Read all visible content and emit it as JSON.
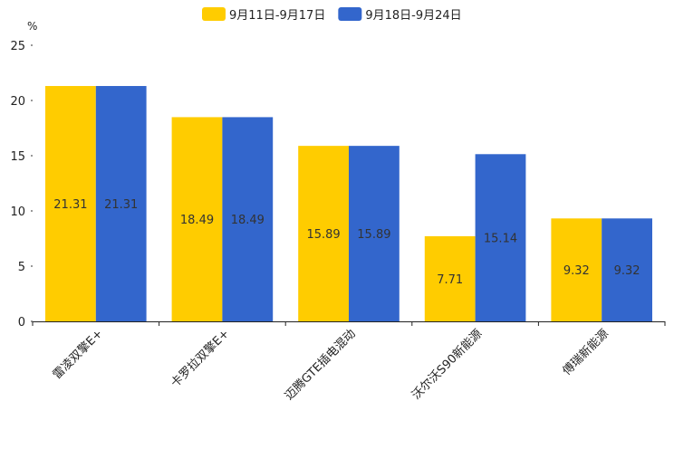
{
  "chart_data": {
    "type": "bar",
    "unit": "%",
    "categories": [
      "雷凌双擎E+",
      "卡罗拉双擎E+",
      "迈腾GTE插电混动",
      "沃尔沃S90新能源",
      "傅瑞新能源"
    ],
    "series": [
      {
        "name": "9月11日-9月17日",
        "color": "#ffcc00",
        "values": [
          21.31,
          18.49,
          15.89,
          7.71,
          9.32
        ]
      },
      {
        "name": "9月18日-9月24日",
        "color": "#3366cc",
        "values": [
          21.31,
          18.49,
          15.89,
          15.14,
          9.32
        ]
      }
    ],
    "ylim": [
      0,
      25
    ],
    "yticks": [
      0,
      5,
      10,
      15,
      20,
      25
    ],
    "legend_position": "top-center",
    "grid": false
  }
}
